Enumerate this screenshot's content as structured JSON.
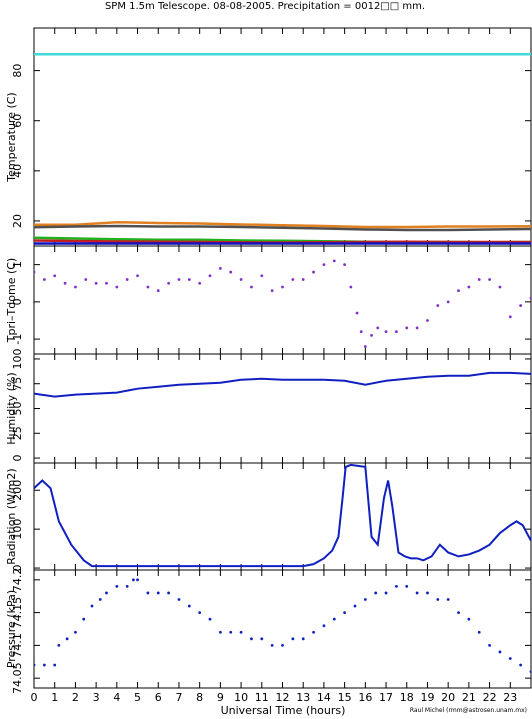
{
  "title": "SPM 1.5m Telescope. 08-08-2005. Precipitation = 0012□□ mm.",
  "xlabel": "Universal Time (hours)",
  "credit": "Raul Michel (rmm@astrosen.unam.mx)",
  "x_ticks": [
    "0",
    "1",
    "2",
    "3",
    "4",
    "5",
    "6",
    "7",
    "8",
    "9",
    "10",
    "11",
    "12",
    "13",
    "14",
    "15",
    "16",
    "17",
    "18",
    "19",
    "20",
    "21",
    "22",
    "23"
  ],
  "chart_data": [
    {
      "type": "line",
      "ylabel": "Temperature (C)",
      "ylim": [
        10,
        97
      ],
      "yticks": [
        20,
        40,
        60,
        80
      ],
      "ytick_labels": [
        "20",
        "40",
        "60",
        "80"
      ],
      "series": [
        {
          "color": "#40d8d8",
          "x": [
            0,
            24
          ],
          "y": [
            86.5,
            86.5
          ]
        },
        {
          "color": "#e08020",
          "x": [
            0,
            2,
            4,
            6,
            8,
            10,
            12,
            14,
            16,
            18,
            20,
            22,
            24
          ],
          "y": [
            18.5,
            18.5,
            19.5,
            19.2,
            19.0,
            18.6,
            18.3,
            18.0,
            17.6,
            17.6,
            17.8,
            17.8,
            17.9
          ]
        },
        {
          "color": "#505050",
          "x": [
            0,
            2,
            4,
            6,
            8,
            10,
            12,
            14,
            16,
            18,
            20,
            22,
            24
          ],
          "y": [
            17.5,
            17.8,
            18.0,
            17.8,
            17.8,
            17.6,
            17.3,
            17.0,
            16.6,
            16.4,
            16.4,
            16.6,
            16.8
          ]
        },
        {
          "color": "#20b020",
          "x": [
            0,
            2,
            4,
            6,
            8,
            10,
            12,
            14,
            16,
            18,
            20,
            22,
            24
          ],
          "y": [
            13.3,
            13.0,
            12.7,
            12.5,
            12.5,
            12.2,
            12.1,
            11.9,
            11.7,
            11.6,
            11.6,
            11.5,
            11.6
          ]
        },
        {
          "color": "#c02020",
          "x": [
            0,
            4,
            8,
            12,
            16,
            18,
            20,
            24
          ],
          "y": [
            12.2,
            11.8,
            11.6,
            11.4,
            11.6,
            11.7,
            11.6,
            11.6
          ]
        },
        {
          "color": "#1010c0",
          "x": [
            0,
            24
          ],
          "y": [
            11.0,
            11.0
          ]
        }
      ]
    },
    {
      "type": "scatter",
      "ylabel": "Tpri–Tdome (C)",
      "ylim": [
        -1.4,
        1.5
      ],
      "yticks": [
        -1,
        0,
        1
      ],
      "ytick_labels": [
        "-1",
        "0",
        "1"
      ],
      "color": "#8030c8",
      "x": [
        0,
        0.5,
        1.0,
        1.5,
        2.0,
        2.5,
        3.0,
        3.5,
        4.0,
        4.5,
        5.0,
        5.5,
        6.0,
        6.5,
        7.0,
        7.5,
        8.0,
        8.5,
        9.0,
        9.5,
        10.0,
        10.5,
        11.0,
        11.5,
        12.0,
        12.5,
        13.0,
        13.5,
        14.0,
        14.5,
        15.0,
        15.3,
        15.6,
        15.8,
        16.0,
        16.3,
        16.6,
        17.0,
        17.5,
        18.0,
        18.5,
        19.0,
        19.5,
        20.0,
        20.5,
        21.0,
        21.5,
        22.0,
        22.5,
        23.0,
        23.5,
        24.0
      ],
      "y": [
        0.8,
        0.6,
        0.7,
        0.5,
        0.4,
        0.6,
        0.5,
        0.5,
        0.4,
        0.6,
        0.7,
        0.4,
        0.3,
        0.5,
        0.6,
        0.6,
        0.5,
        0.7,
        0.9,
        0.8,
        0.6,
        0.4,
        0.7,
        0.3,
        0.4,
        0.6,
        0.6,
        0.8,
        1.0,
        1.1,
        1.0,
        0.4,
        -0.3,
        -0.8,
        -1.2,
        -0.9,
        -0.7,
        -0.8,
        -0.8,
        -0.7,
        -0.7,
        -0.5,
        -0.1,
        0.0,
        0.3,
        0.4,
        0.6,
        0.6,
        0.4,
        -0.4,
        -0.1,
        0.1
      ]
    },
    {
      "type": "line",
      "ylabel": "Humidity (%)",
      "ylim": [
        -5,
        105
      ],
      "yticks": [
        0,
        25,
        50,
        75,
        100
      ],
      "ytick_labels": [
        "0",
        "25",
        "50",
        "75",
        "100"
      ],
      "color": "#1020c0",
      "x": [
        0,
        1,
        2,
        3,
        4,
        5,
        6,
        7,
        8,
        9,
        10,
        11,
        12,
        13,
        14,
        15,
        16,
        17,
        18,
        19,
        20,
        21,
        22,
        23,
        24
      ],
      "y": [
        65,
        62,
        64,
        65,
        66,
        70,
        72,
        74,
        75,
        76,
        79,
        80,
        79,
        79,
        79,
        78,
        74,
        78,
        80,
        82,
        83,
        83,
        86,
        86,
        85
      ]
    },
    {
      "type": "line",
      "ylabel": "Radiation (W/m2)",
      "ylim": [
        -5,
        270
      ],
      "yticks": [
        0,
        100,
        200
      ],
      "ytick_labels": [
        "0",
        "100",
        "200"
      ],
      "color": "#1020c0",
      "x": [
        0,
        0.4,
        0.8,
        1.2,
        1.8,
        2.4,
        2.8,
        3.5,
        5,
        7,
        9,
        11,
        13,
        13.5,
        14,
        14.4,
        14.7,
        14.9,
        15.05,
        15.3,
        16,
        16.3,
        16.6,
        16.9,
        17.1,
        17.3,
        17.6,
        17.9,
        18.2,
        18.5,
        18.8,
        19.2,
        19.6,
        20.0,
        20.5,
        21.0,
        21.5,
        22.0,
        22.5,
        23.0,
        23.3,
        23.6,
        24.0
      ],
      "y": [
        205,
        225,
        205,
        120,
        60,
        20,
        5,
        5,
        5,
        5,
        5,
        5,
        5,
        10,
        25,
        45,
        80,
        180,
        260,
        265,
        260,
        80,
        60,
        180,
        225,
        160,
        40,
        30,
        25,
        25,
        20,
        30,
        60,
        40,
        30,
        35,
        45,
        60,
        90,
        110,
        120,
        110,
        70
      ]
    },
    {
      "type": "scatter",
      "ylabel": "Pressure (kPa)",
      "ylim": [
        74.035,
        74.215
      ],
      "yticks": [
        74.05,
        74.1,
        74.15,
        74.2
      ],
      "ytick_labels": [
        "74.05",
        "74.1",
        "74.15",
        "74.2"
      ],
      "color": "#1020c0",
      "x": [
        0.0,
        0.5,
        1.0,
        1.2,
        1.6,
        2.0,
        2.4,
        2.8,
        3.2,
        3.5,
        4.0,
        4.5,
        4.8,
        5.0,
        5.5,
        6.0,
        6.5,
        7.0,
        7.5,
        8.0,
        8.5,
        9.0,
        9.5,
        10.0,
        10.5,
        11.0,
        11.5,
        12.0,
        12.5,
        13.0,
        13.5,
        14.0,
        14.5,
        15.0,
        15.5,
        16.0,
        16.5,
        17.0,
        17.5,
        18.0,
        18.5,
        19.0,
        19.5,
        20.0,
        20.5,
        21.0,
        21.5,
        22.0,
        22.5,
        23.0,
        23.5,
        24.0
      ],
      "y": [
        74.07,
        74.07,
        74.07,
        74.1,
        74.11,
        74.12,
        74.14,
        74.16,
        74.17,
        74.18,
        74.19,
        74.19,
        74.2,
        74.2,
        74.18,
        74.18,
        74.18,
        74.17,
        74.16,
        74.15,
        74.14,
        74.12,
        74.12,
        74.12,
        74.11,
        74.11,
        74.1,
        74.1,
        74.11,
        74.11,
        74.12,
        74.13,
        74.14,
        74.15,
        74.16,
        74.17,
        74.18,
        74.18,
        74.19,
        74.19,
        74.18,
        74.18,
        74.17,
        74.17,
        74.15,
        74.14,
        74.12,
        74.1,
        74.09,
        74.08,
        74.07,
        74.06
      ]
    }
  ]
}
